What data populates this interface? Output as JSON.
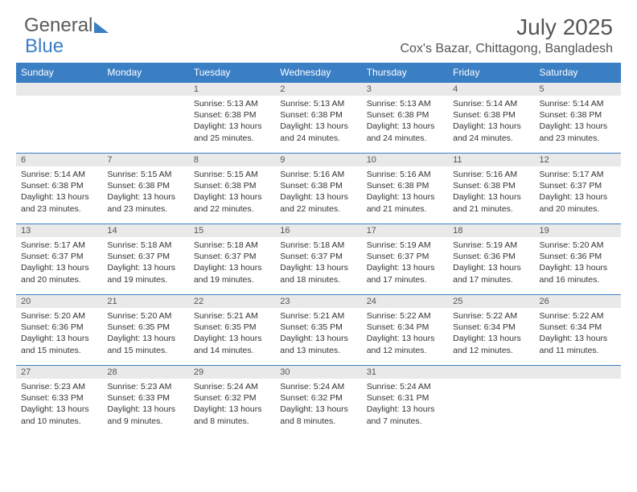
{
  "logo": {
    "part1": "General",
    "part2": "Blue"
  },
  "title": "July 2025",
  "location": "Cox's Bazar, Chittagong, Bangladesh",
  "colors": {
    "header_bg": "#3a7fc4",
    "header_text": "#ffffff",
    "daynum_bg": "#e9e9e9",
    "border": "#3a7fc4",
    "body_text": "#333333",
    "title_text": "#555555"
  },
  "day_headers": [
    "Sunday",
    "Monday",
    "Tuesday",
    "Wednesday",
    "Thursday",
    "Friday",
    "Saturday"
  ],
  "weeks": [
    [
      {
        "n": "",
        "sr": "",
        "ss": "",
        "dl": ""
      },
      {
        "n": "",
        "sr": "",
        "ss": "",
        "dl": ""
      },
      {
        "n": "1",
        "sr": "Sunrise: 5:13 AM",
        "ss": "Sunset: 6:38 PM",
        "dl": "Daylight: 13 hours and 25 minutes."
      },
      {
        "n": "2",
        "sr": "Sunrise: 5:13 AM",
        "ss": "Sunset: 6:38 PM",
        "dl": "Daylight: 13 hours and 24 minutes."
      },
      {
        "n": "3",
        "sr": "Sunrise: 5:13 AM",
        "ss": "Sunset: 6:38 PM",
        "dl": "Daylight: 13 hours and 24 minutes."
      },
      {
        "n": "4",
        "sr": "Sunrise: 5:14 AM",
        "ss": "Sunset: 6:38 PM",
        "dl": "Daylight: 13 hours and 24 minutes."
      },
      {
        "n": "5",
        "sr": "Sunrise: 5:14 AM",
        "ss": "Sunset: 6:38 PM",
        "dl": "Daylight: 13 hours and 23 minutes."
      }
    ],
    [
      {
        "n": "6",
        "sr": "Sunrise: 5:14 AM",
        "ss": "Sunset: 6:38 PM",
        "dl": "Daylight: 13 hours and 23 minutes."
      },
      {
        "n": "7",
        "sr": "Sunrise: 5:15 AM",
        "ss": "Sunset: 6:38 PM",
        "dl": "Daylight: 13 hours and 23 minutes."
      },
      {
        "n": "8",
        "sr": "Sunrise: 5:15 AM",
        "ss": "Sunset: 6:38 PM",
        "dl": "Daylight: 13 hours and 22 minutes."
      },
      {
        "n": "9",
        "sr": "Sunrise: 5:16 AM",
        "ss": "Sunset: 6:38 PM",
        "dl": "Daylight: 13 hours and 22 minutes."
      },
      {
        "n": "10",
        "sr": "Sunrise: 5:16 AM",
        "ss": "Sunset: 6:38 PM",
        "dl": "Daylight: 13 hours and 21 minutes."
      },
      {
        "n": "11",
        "sr": "Sunrise: 5:16 AM",
        "ss": "Sunset: 6:38 PM",
        "dl": "Daylight: 13 hours and 21 minutes."
      },
      {
        "n": "12",
        "sr": "Sunrise: 5:17 AM",
        "ss": "Sunset: 6:37 PM",
        "dl": "Daylight: 13 hours and 20 minutes."
      }
    ],
    [
      {
        "n": "13",
        "sr": "Sunrise: 5:17 AM",
        "ss": "Sunset: 6:37 PM",
        "dl": "Daylight: 13 hours and 20 minutes."
      },
      {
        "n": "14",
        "sr": "Sunrise: 5:18 AM",
        "ss": "Sunset: 6:37 PM",
        "dl": "Daylight: 13 hours and 19 minutes."
      },
      {
        "n": "15",
        "sr": "Sunrise: 5:18 AM",
        "ss": "Sunset: 6:37 PM",
        "dl": "Daylight: 13 hours and 19 minutes."
      },
      {
        "n": "16",
        "sr": "Sunrise: 5:18 AM",
        "ss": "Sunset: 6:37 PM",
        "dl": "Daylight: 13 hours and 18 minutes."
      },
      {
        "n": "17",
        "sr": "Sunrise: 5:19 AM",
        "ss": "Sunset: 6:37 PM",
        "dl": "Daylight: 13 hours and 17 minutes."
      },
      {
        "n": "18",
        "sr": "Sunrise: 5:19 AM",
        "ss": "Sunset: 6:36 PM",
        "dl": "Daylight: 13 hours and 17 minutes."
      },
      {
        "n": "19",
        "sr": "Sunrise: 5:20 AM",
        "ss": "Sunset: 6:36 PM",
        "dl": "Daylight: 13 hours and 16 minutes."
      }
    ],
    [
      {
        "n": "20",
        "sr": "Sunrise: 5:20 AM",
        "ss": "Sunset: 6:36 PM",
        "dl": "Daylight: 13 hours and 15 minutes."
      },
      {
        "n": "21",
        "sr": "Sunrise: 5:20 AM",
        "ss": "Sunset: 6:35 PM",
        "dl": "Daylight: 13 hours and 15 minutes."
      },
      {
        "n": "22",
        "sr": "Sunrise: 5:21 AM",
        "ss": "Sunset: 6:35 PM",
        "dl": "Daylight: 13 hours and 14 minutes."
      },
      {
        "n": "23",
        "sr": "Sunrise: 5:21 AM",
        "ss": "Sunset: 6:35 PM",
        "dl": "Daylight: 13 hours and 13 minutes."
      },
      {
        "n": "24",
        "sr": "Sunrise: 5:22 AM",
        "ss": "Sunset: 6:34 PM",
        "dl": "Daylight: 13 hours and 12 minutes."
      },
      {
        "n": "25",
        "sr": "Sunrise: 5:22 AM",
        "ss": "Sunset: 6:34 PM",
        "dl": "Daylight: 13 hours and 12 minutes."
      },
      {
        "n": "26",
        "sr": "Sunrise: 5:22 AM",
        "ss": "Sunset: 6:34 PM",
        "dl": "Daylight: 13 hours and 11 minutes."
      }
    ],
    [
      {
        "n": "27",
        "sr": "Sunrise: 5:23 AM",
        "ss": "Sunset: 6:33 PM",
        "dl": "Daylight: 13 hours and 10 minutes."
      },
      {
        "n": "28",
        "sr": "Sunrise: 5:23 AM",
        "ss": "Sunset: 6:33 PM",
        "dl": "Daylight: 13 hours and 9 minutes."
      },
      {
        "n": "29",
        "sr": "Sunrise: 5:24 AM",
        "ss": "Sunset: 6:32 PM",
        "dl": "Daylight: 13 hours and 8 minutes."
      },
      {
        "n": "30",
        "sr": "Sunrise: 5:24 AM",
        "ss": "Sunset: 6:32 PM",
        "dl": "Daylight: 13 hours and 8 minutes."
      },
      {
        "n": "31",
        "sr": "Sunrise: 5:24 AM",
        "ss": "Sunset: 6:31 PM",
        "dl": "Daylight: 13 hours and 7 minutes."
      },
      {
        "n": "",
        "sr": "",
        "ss": "",
        "dl": ""
      },
      {
        "n": "",
        "sr": "",
        "ss": "",
        "dl": ""
      }
    ]
  ]
}
